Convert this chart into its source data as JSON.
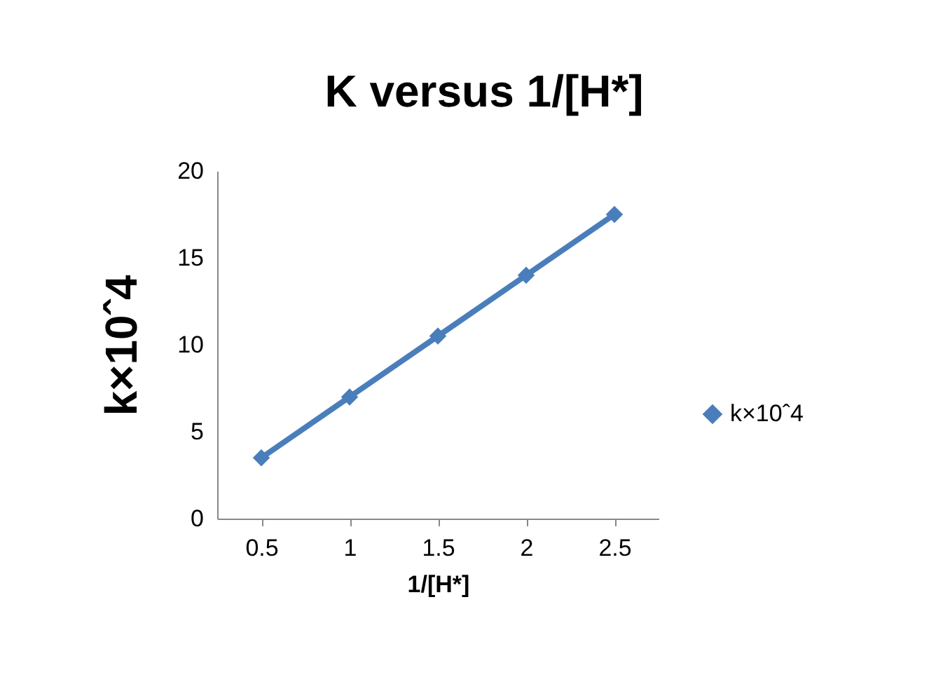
{
  "chart_data": {
    "type": "line",
    "title": "K versus 1/[H*]",
    "xlabel": "1/[H*]",
    "ylabel": "k×10ˆ4",
    "categories": [
      "0.5",
      "1",
      "1.5",
      "2",
      "2.5"
    ],
    "series": [
      {
        "name": "k×10ˆ4",
        "color": "#4a7ebb",
        "values": [
          3.5,
          7,
          10.5,
          14,
          17.5
        ]
      }
    ],
    "ylim": [
      0,
      20
    ],
    "yticks": [
      0,
      5,
      10,
      15,
      20
    ],
    "grid": false,
    "legend": "right",
    "marker": "diamond",
    "line_style": "solid"
  }
}
